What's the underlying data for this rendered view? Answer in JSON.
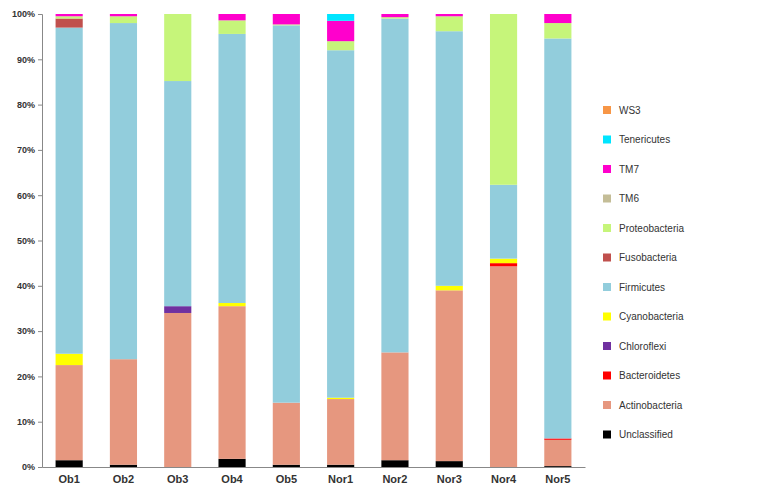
{
  "chart_data": {
    "type": "bar",
    "stacked": true,
    "legend": "right",
    "categories": [
      "Ob1",
      "Ob2",
      "Ob3",
      "Ob4",
      "Ob5",
      "Nor1",
      "Nor2",
      "Nor3",
      "Nor4",
      "Nor5"
    ],
    "ylim": [
      0,
      100
    ],
    "yticks": [
      {
        "value": 0,
        "label": "0%"
      },
      {
        "value": 10,
        "label": "10%"
      },
      {
        "value": 20,
        "label": "20%"
      },
      {
        "value": 30,
        "label": "30%"
      },
      {
        "value": 40,
        "label": "40%"
      },
      {
        "value": 50,
        "label": "50%"
      },
      {
        "value": 60,
        "label": "60%"
      },
      {
        "value": 70,
        "label": "70%"
      },
      {
        "value": 80,
        "label": "80%"
      },
      {
        "value": 90,
        "label": "90%"
      },
      {
        "value": 100,
        "label": "100%"
      }
    ],
    "series": [
      {
        "name": "Unclassified",
        "color": "#000000",
        "values": [
          1.5,
          0.5,
          0,
          1.8,
          0.5,
          0.5,
          1.5,
          1.3,
          0,
          0.2
        ]
      },
      {
        "name": "Actinobacteria",
        "color": "#e6977f",
        "values": [
          21,
          23.3,
          34,
          33.7,
          13.7,
          14.5,
          23.8,
          37.7,
          44.3,
          5.8
        ]
      },
      {
        "name": "Bacteroidetes",
        "color": "#ff0000",
        "values": [
          0,
          0,
          0,
          0,
          0,
          0,
          0,
          0,
          0.7,
          0.3
        ]
      },
      {
        "name": "Chloroflexi",
        "color": "#7030a0",
        "values": [
          0,
          0,
          1.5,
          0,
          0,
          0,
          0,
          0,
          0,
          0
        ]
      },
      {
        "name": "Cyanobacteria",
        "color": "#ffff00",
        "values": [
          2.5,
          0,
          0,
          0.7,
          0,
          0.3,
          0,
          1,
          1,
          0
        ]
      },
      {
        "name": "Firmicutes",
        "color": "#92cddc",
        "values": [
          72,
          74.2,
          49.7,
          59.4,
          83.3,
          76.7,
          73.7,
          56.2,
          16.3,
          88.3
        ]
      },
      {
        "name": "Fusobacteria",
        "color": "#c0504d",
        "values": [
          2,
          0,
          0,
          0,
          0,
          0,
          0,
          0,
          0,
          0
        ]
      },
      {
        "name": "Proteobacteria",
        "color": "#c6f57a",
        "values": [
          0.5,
          1.5,
          14.8,
          3,
          0.2,
          2,
          0.3,
          3.3,
          37.7,
          3.4
        ]
      },
      {
        "name": "TM6",
        "color": "#c4bd97",
        "values": [
          0,
          0,
          0,
          0,
          0,
          0,
          0,
          0,
          0,
          0
        ]
      },
      {
        "name": "TM7",
        "color": "#ff00cc",
        "values": [
          0.5,
          0.5,
          0,
          1.4,
          2.3,
          4.5,
          0.7,
          0.5,
          0,
          2
        ]
      },
      {
        "name": "Tenericutes",
        "color": "#00e5ff",
        "values": [
          0,
          0,
          0,
          0,
          0,
          1.5,
          0,
          0,
          0,
          0
        ]
      },
      {
        "name": "WS3",
        "color": "#f79646",
        "values": [
          0,
          0,
          0,
          0,
          0,
          0,
          0,
          0,
          0,
          0
        ]
      }
    ]
  }
}
